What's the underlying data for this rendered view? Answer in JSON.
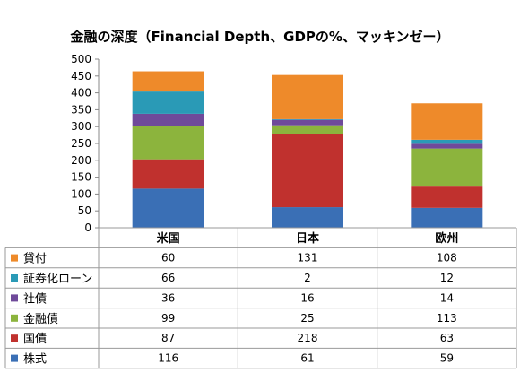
{
  "chart_data": {
    "type": "bar",
    "stacked": true,
    "title": "金融の深度（Financial Depth、GDPの%、マッキンゼー）",
    "categories": [
      "米国",
      "日本",
      "欧州"
    ],
    "ylim": [
      0,
      500
    ],
    "yticks": [
      0,
      50,
      100,
      150,
      200,
      250,
      300,
      350,
      400,
      450,
      500
    ],
    "grid": false,
    "legend": "data-table-left",
    "series": [
      {
        "name": "株式",
        "color": "#3a6fb5",
        "values": [
          116,
          61,
          59
        ]
      },
      {
        "name": "国債",
        "color": "#c0312e",
        "values": [
          87,
          218,
          63
        ]
      },
      {
        "name": "金融債",
        "color": "#8cb43d",
        "values": [
          99,
          25,
          113
        ]
      },
      {
        "name": "社債",
        "color": "#6f4a9a",
        "values": [
          36,
          16,
          14
        ]
      },
      {
        "name": "証券化ローン",
        "color": "#2a9ab6",
        "values": [
          66,
          2,
          12
        ]
      },
      {
        "name": "貸付",
        "color": "#ee8a2a",
        "values": [
          60,
          131,
          108
        ]
      }
    ]
  }
}
